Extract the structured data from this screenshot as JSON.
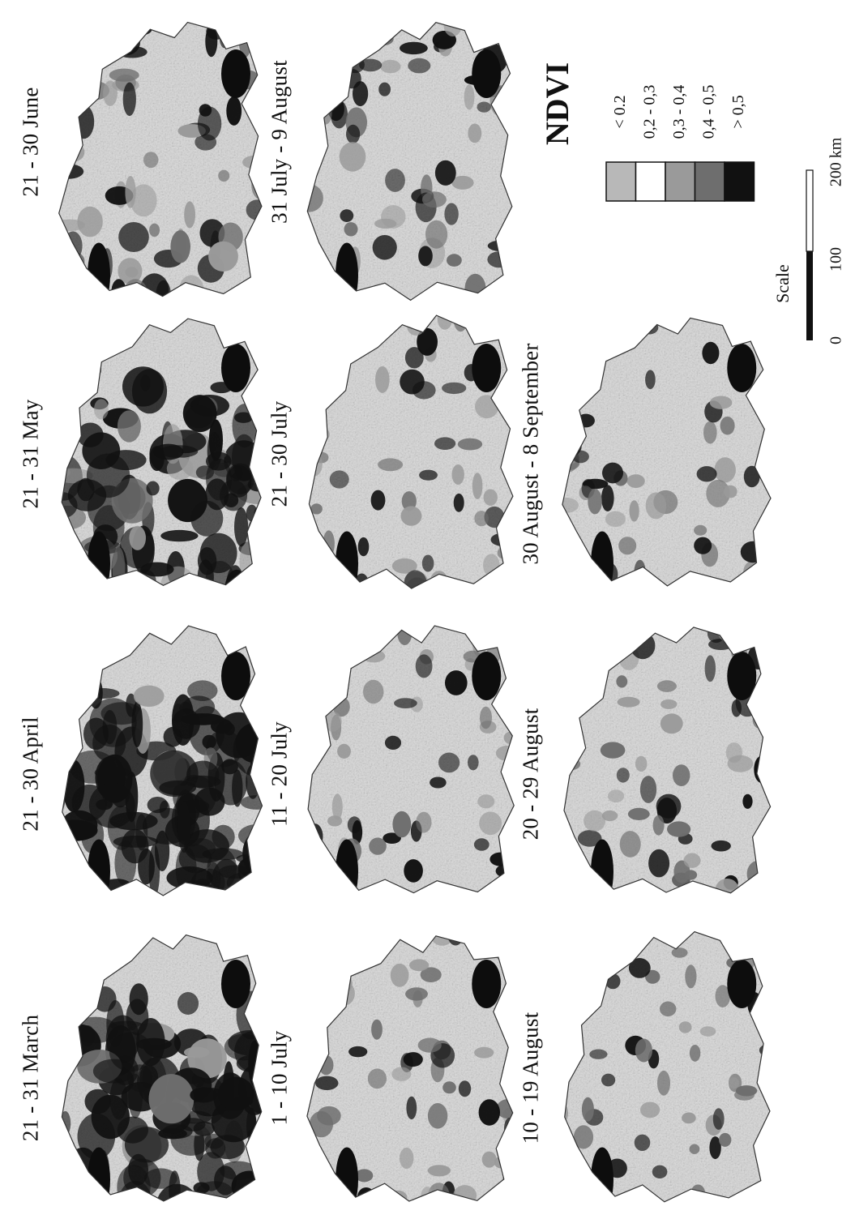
{
  "panels": [
    {
      "label": "21 - 31 March",
      "intensity": 0.85
    },
    {
      "label": "21 - 30 April",
      "intensity": 0.95
    },
    {
      "label": "21 - 31 May",
      "intensity": 0.8
    },
    {
      "label": "21 - 30 June",
      "intensity": 0.5
    },
    {
      "label": "1 - 10 July",
      "intensity": 0.35
    },
    {
      "label": "11 - 20 July",
      "intensity": 0.35
    },
    {
      "label": "21 - 30 July",
      "intensity": 0.38
    },
    {
      "label": "31 July - 9 August",
      "intensity": 0.45
    },
    {
      "label": "10 - 19 August",
      "intensity": 0.32
    },
    {
      "label": "20 - 29 August",
      "intensity": 0.4
    },
    {
      "label": "30 August - 8 September",
      "intensity": 0.38
    }
  ],
  "legend": {
    "title": "NDVI",
    "classes": [
      {
        "label": "< 0.2",
        "fill": "#b8b8b8"
      },
      {
        "label": "0,2 - 0,3",
        "fill": "#ffffff"
      },
      {
        "label": "0,3 - 0,4",
        "fill": "#9a9a9a"
      },
      {
        "label": "0,4 - 0,5",
        "fill": "#6e6e6e"
      },
      {
        "label": "> 0,5",
        "fill": "#111111"
      }
    ]
  },
  "scale": {
    "title": "Scale",
    "ticks": [
      "0",
      "100",
      "200 km"
    ]
  }
}
